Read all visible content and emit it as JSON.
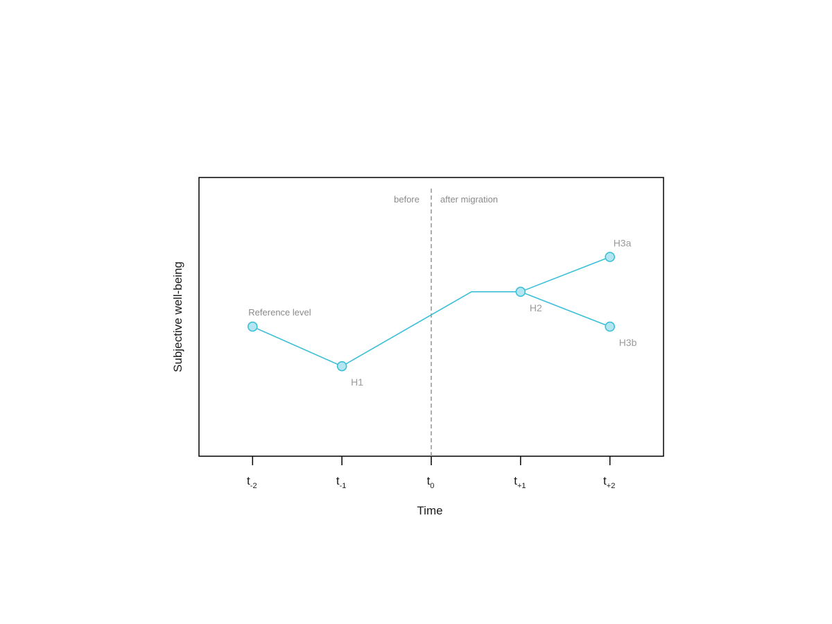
{
  "colors": {
    "line": "#3bbfd8",
    "marker_fill": "#b4e6f1",
    "divider": "#999999",
    "frame": "#000000"
  },
  "chart_data": {
    "type": "line",
    "xlabel": "Time",
    "ylabel": "Subjective well-being",
    "xlim": [
      -2.6,
      2.6
    ],
    "ylim": [
      0,
      10
    ],
    "grid": false,
    "legend": "none",
    "x_ticks": [
      {
        "x": -2,
        "base": "t",
        "sub": "-2"
      },
      {
        "x": -1,
        "base": "t",
        "sub": "-1"
      },
      {
        "x": 0,
        "base": "t",
        "sub": "0"
      },
      {
        "x": 1,
        "base": "t",
        "sub": "+1"
      },
      {
        "x": 2,
        "base": "t",
        "sub": "+2"
      }
    ],
    "series": [
      {
        "points": [
          {
            "x": -2,
            "y": 4.65
          },
          {
            "x": -1,
            "y": 3.23
          },
          {
            "x": 0.45,
            "y": 5.9
          },
          {
            "x": 1,
            "y": 5.9
          },
          {
            "x": 2,
            "y": 7.15
          }
        ]
      },
      {
        "points": [
          {
            "x": 1,
            "y": 5.9
          },
          {
            "x": 2,
            "y": 4.65
          }
        ]
      }
    ],
    "markers": [
      {
        "x": -2,
        "y": 4.65,
        "label": "Reference level",
        "label_pos": "above"
      },
      {
        "x": -1,
        "y": 3.23,
        "label": "H1",
        "label_pos": "below-right"
      },
      {
        "x": 1,
        "y": 5.9,
        "label": "H2",
        "label_pos": "below-right"
      },
      {
        "x": 2,
        "y": 7.15,
        "label": "H3a",
        "label_pos": "above-right"
      },
      {
        "x": 2,
        "y": 4.65,
        "label": "H3b",
        "label_pos": "below-right"
      }
    ],
    "divider": {
      "x": 0,
      "left_label": "before",
      "right_label": "after migration"
    }
  }
}
